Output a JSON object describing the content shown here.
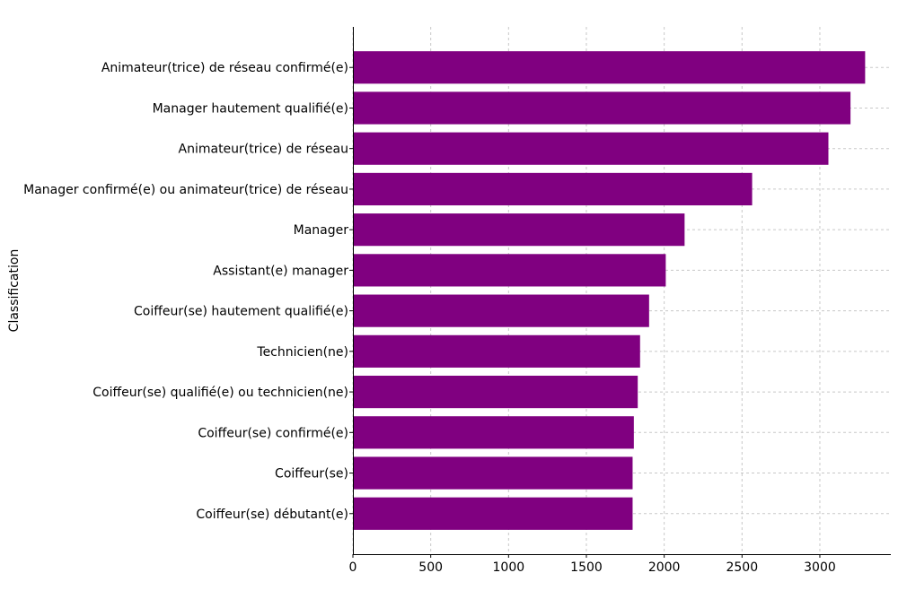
{
  "chart_data": {
    "type": "bar",
    "orientation": "horizontal",
    "title": "",
    "xlabel": "",
    "ylabel": "Classification",
    "categories": [
      "Animateur(trice) de réseau confirmé(e)",
      "Manager hautement qualifié(e)",
      "Animateur(trice) de réseau",
      "Manager confirmé(e) ou animateur(trice) de réseau",
      "Manager",
      "Assistant(e) manager",
      "Coiffeur(se) hautement qualifié(e)",
      "Technicien(ne)",
      "Coiffeur(se) qualifié(e) ou technicien(ne)",
      "Coiffeur(se) confirmé(e)",
      "Coiffeur(se)",
      "Coiffeur(se) débutant(e)"
    ],
    "values": [
      3291,
      3197,
      3055,
      2565,
      2131,
      2010,
      1903,
      1845,
      1830,
      1805,
      1797,
      1797
    ],
    "xlim": [
      0,
      3456
    ],
    "xticks": [
      0,
      500,
      1000,
      1500,
      2000,
      2500,
      3000
    ],
    "grid": true,
    "bar_color": "#800080"
  }
}
